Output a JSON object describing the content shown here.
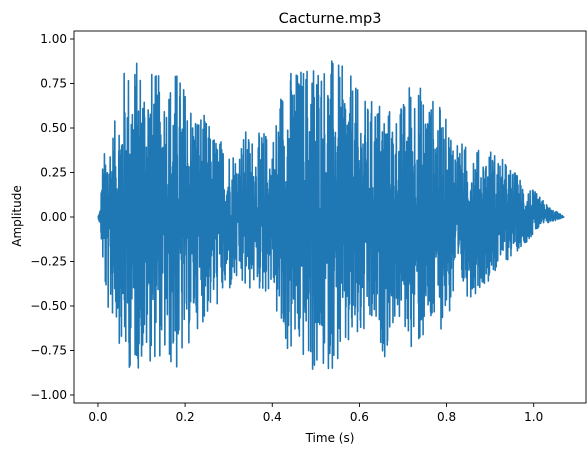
{
  "chart_data": {
    "type": "line",
    "title": "Cacturne.mp3",
    "xlabel": "Time (s)",
    "ylabel": "Amplitude",
    "xlim": [
      -0.055,
      1.12
    ],
    "ylim": [
      -1.045,
      1.045
    ],
    "xticks": [
      0.0,
      0.2,
      0.4,
      0.6,
      0.8,
      1.0
    ],
    "xtick_labels": [
      "0.0",
      "0.2",
      "0.4",
      "0.6",
      "0.8",
      "1.0"
    ],
    "yticks": [
      -1.0,
      -0.75,
      -0.5,
      -0.25,
      0.0,
      0.25,
      0.5,
      0.75,
      1.0
    ],
    "ytick_labels": [
      "−1.00",
      "−0.75",
      "−0.50",
      "−0.25",
      "0.00",
      "0.25",
      "0.50",
      "0.75",
      "1.00"
    ],
    "grid": false,
    "legend": "none",
    "color": "#1f77b4",
    "series": [
      {
        "envelope": {
          "t": [
            0.0,
            0.005,
            0.01,
            0.02,
            0.04,
            0.06,
            0.08,
            0.1,
            0.12,
            0.14,
            0.16,
            0.18,
            0.2,
            0.22,
            0.24,
            0.26,
            0.28,
            0.3,
            0.32,
            0.34,
            0.36,
            0.38,
            0.4,
            0.42,
            0.44,
            0.46,
            0.48,
            0.5,
            0.52,
            0.54,
            0.56,
            0.58,
            0.6,
            0.62,
            0.64,
            0.66,
            0.68,
            0.7,
            0.72,
            0.74,
            0.76,
            0.78,
            0.8,
            0.82,
            0.84,
            0.86,
            0.88,
            0.9,
            0.92,
            0.94,
            0.96,
            0.98,
            1.0,
            1.02,
            1.04,
            1.06,
            1.07
          ],
          "upper": [
            0.0,
            0.05,
            0.3,
            0.45,
            0.55,
            0.85,
            0.9,
            0.9,
            0.85,
            0.8,
            0.78,
            0.85,
            0.75,
            0.65,
            0.6,
            0.5,
            0.45,
            0.4,
            0.4,
            0.5,
            0.45,
            0.5,
            0.45,
            0.75,
            0.85,
            0.85,
            0.9,
            0.95,
            0.9,
            0.9,
            0.85,
            0.8,
            0.7,
            0.65,
            0.7,
            0.65,
            0.6,
            0.65,
            0.85,
            0.75,
            0.7,
            0.65,
            0.55,
            0.5,
            0.4,
            0.45,
            0.35,
            0.4,
            0.35,
            0.3,
            0.25,
            0.2,
            0.15,
            0.1,
            0.05,
            0.02,
            0.0
          ],
          "lower": [
            0.0,
            -0.05,
            -0.25,
            -0.55,
            -0.6,
            -0.85,
            -0.88,
            -0.85,
            -0.82,
            -0.8,
            -0.85,
            -0.9,
            -0.8,
            -0.65,
            -0.6,
            -0.55,
            -0.5,
            -0.45,
            -0.4,
            -0.45,
            -0.4,
            -0.45,
            -0.4,
            -0.75,
            -0.8,
            -0.8,
            -0.85,
            -0.93,
            -0.9,
            -0.85,
            -0.85,
            -0.8,
            -0.75,
            -0.7,
            -0.7,
            -0.8,
            -0.6,
            -0.65,
            -0.75,
            -0.75,
            -0.7,
            -0.65,
            -0.6,
            -0.5,
            -0.45,
            -0.45,
            -0.4,
            -0.35,
            -0.3,
            -0.25,
            -0.2,
            -0.15,
            -0.1,
            -0.05,
            -0.03,
            -0.01,
            0.0
          ]
        }
      }
    ]
  }
}
